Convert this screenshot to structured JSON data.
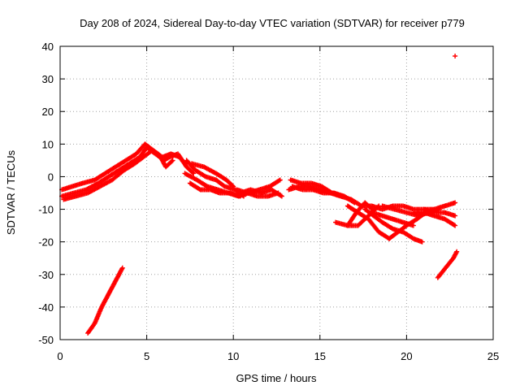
{
  "chart_data": {
    "type": "scatter",
    "title": "Day 208 of 2024, Sidereal Day-to-day VTEC variation (SDTVAR) for receiver p779",
    "xlabel": "GPS time / hours",
    "ylabel": "SDTVAR / TECUs",
    "xlim": [
      0,
      25
    ],
    "ylim": [
      -50,
      40
    ],
    "xticks": [
      0,
      5,
      10,
      15,
      20,
      25
    ],
    "yticks": [
      -50,
      -40,
      -30,
      -20,
      -10,
      0,
      10,
      20,
      30,
      40
    ],
    "grid": true,
    "marker": "plus",
    "series": [
      {
        "name": "SDTVAR",
        "color": "#ff0000",
        "tracks": [
          {
            "x": [
              0.1,
              0.8,
              1.5,
              2.2,
              2.8,
              3.4,
              4.0,
              4.6,
              5.0,
              5.5,
              6.0,
              6.3,
              6.8,
              7.3,
              7.7
            ],
            "y": [
              -6,
              -5,
              -4,
              -2,
              0,
              2,
              4,
              6,
              9,
              7,
              5,
              6,
              7,
              3,
              1
            ]
          },
          {
            "x": [
              0.1,
              0.7,
              1.3,
              2.0,
              2.6,
              3.2,
              3.8,
              4.4,
              4.9,
              5.4,
              5.9,
              6.4,
              6.9,
              7.2
            ],
            "y": [
              -4,
              -3,
              -2,
              -1,
              1,
              3,
              5,
              7,
              10,
              8,
              6,
              7,
              6,
              4
            ]
          },
          {
            "x": [
              0.2,
              0.9,
              1.6,
              2.3,
              3.0,
              3.7,
              4.3,
              4.8,
              5.3,
              5.8,
              6.1,
              6.5
            ],
            "y": [
              -7,
              -6,
              -5,
              -3,
              -1,
              2,
              4,
              6,
              8,
              6,
              3,
              5
            ]
          },
          {
            "x": [
              7.3,
              7.8,
              8.4,
              9.0,
              9.5,
              10.1,
              10.6
            ],
            "y": [
              5,
              2,
              0,
              -1,
              -3,
              -4,
              -6
            ]
          },
          {
            "x": [
              7.2,
              7.9,
              8.5,
              9.1,
              9.7,
              10.3
            ],
            "y": [
              1,
              -1,
              -3,
              -4,
              -5,
              -6
            ]
          },
          {
            "x": [
              7.5,
              8.1,
              8.7,
              9.2,
              9.8,
              10.4
            ],
            "y": [
              -2,
              -4,
              -4,
              -5,
              -5,
              -6
            ]
          },
          {
            "x": [
              7.6,
              8.3,
              9.0,
              9.6,
              10.0
            ],
            "y": [
              4,
              3,
              1,
              -1,
              -3
            ]
          },
          {
            "x": [
              10.2,
              10.8,
              11.4,
              12.0,
              12.6
            ],
            "y": [
              -4,
              -5,
              -6,
              -6,
              -5
            ]
          },
          {
            "x": [
              10.3,
              10.9,
              11.5,
              12.1,
              12.7
            ],
            "y": [
              -6,
              -5,
              -4,
              -3,
              -1
            ]
          },
          {
            "x": [
              10.4,
              11.0,
              11.6,
              12.2,
              12.8
            ],
            "y": [
              -5,
              -4,
              -5,
              -4,
              -6
            ]
          },
          {
            "x": [
              13.2,
              13.8,
              14.4,
              15.0,
              15.6,
              16.2,
              16.8,
              17.4,
              18.0,
              18.6,
              19.2,
              19.8,
              20.4,
              21.0,
              21.6,
              22.2,
              22.8
            ],
            "y": [
              -4,
              -3,
              -3,
              -4,
              -5,
              -6,
              -7,
              -9,
              -9,
              -10,
              -9,
              -9,
              -10,
              -10,
              -10,
              -9,
              -8
            ]
          },
          {
            "x": [
              13.3,
              13.9,
              14.5,
              15.1,
              15.7,
              16.3
            ],
            "y": [
              -1,
              -2,
              -2,
              -3,
              -5,
              -6
            ]
          },
          {
            "x": [
              13.4,
              14.0,
              14.6,
              15.2,
              15.8,
              16.4,
              17.0
            ],
            "y": [
              -3,
              -4,
              -4,
              -5,
              -5,
              -6,
              -8
            ]
          },
          {
            "x": [
              15.9,
              16.6,
              17.2,
              17.8,
              18.4
            ],
            "y": [
              -14,
              -15,
              -15,
              -12,
              -9
            ]
          },
          {
            "x": [
              16.6,
              17.1,
              17.6,
              18.0
            ],
            "y": [
              -15,
              -11,
              -8,
              -10
            ]
          },
          {
            "x": [
              16.6,
              17.2,
              17.8,
              18.4,
              19.0
            ],
            "y": [
              -9,
              -11,
              -13,
              -17,
              -19
            ]
          },
          {
            "x": [
              17.6,
              18.1,
              18.6,
              19.2,
              19.8,
              20.4,
              20.9
            ],
            "y": [
              -10,
              -12,
              -14,
              -16,
              -17,
              -19,
              -20
            ]
          },
          {
            "x": [
              18.0,
              18.6,
              19.2,
              19.8,
              20.4
            ],
            "y": [
              -11,
              -12,
              -13,
              -14,
              -15
            ]
          },
          {
            "x": [
              19.0,
              19.5,
              20.0,
              20.6,
              21.1,
              21.6
            ],
            "y": [
              -19,
              -17,
              -15,
              -13,
              -11,
              -10
            ]
          },
          {
            "x": [
              18.6,
              19.3,
              20.0,
              20.7,
              21.3,
              21.9
            ],
            "y": [
              -9,
              -10,
              -11,
              -12,
              -11,
              -10
            ]
          },
          {
            "x": [
              20.4,
              21.0,
              21.6,
              22.2,
              22.8
            ],
            "y": [
              -11,
              -11,
              -12,
              -13,
              -15
            ]
          },
          {
            "x": [
              21.0,
              21.6,
              22.2,
              22.8
            ],
            "y": [
              -10,
              -11,
              -11,
              -12
            ]
          },
          {
            "x": [
              1.6,
              2.0,
              2.4,
              2.8,
              3.2,
              3.6
            ],
            "y": [
              -48,
              -45,
              -40,
              -36,
              -32,
              -28
            ]
          },
          {
            "x": [
              21.8,
              22.1,
              22.4,
              22.7,
              22.9
            ],
            "y": [
              -31,
              -29,
              -27,
              -25,
              -23
            ]
          },
          {
            "x": [
              22.8
            ],
            "y": [
              37
            ]
          }
        ]
      }
    ]
  }
}
